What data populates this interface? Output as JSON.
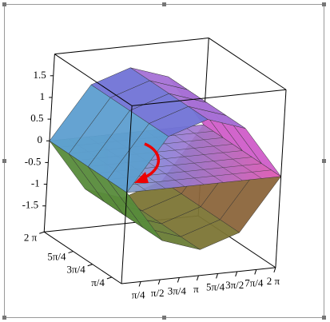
{
  "chart_data": {
    "type": "surface3d",
    "x": [
      0,
      1.5708,
      3.1416,
      4.7124,
      6.2832
    ],
    "y": [
      0,
      1.5708,
      3.1416,
      4.7124,
      6.2832
    ],
    "xlim": [
      0,
      6.2832
    ],
    "ylim": [
      0,
      6.2832
    ],
    "zlim": [
      -2.1,
      2.0
    ],
    "xticks": [
      {
        "value": 0.7854,
        "label": "π/4"
      },
      {
        "value": 1.5708,
        "label": "π/2"
      },
      {
        "value": 2.3562,
        "label": "3π/4"
      },
      {
        "value": 3.1416,
        "label": "π"
      },
      {
        "value": 3.927,
        "label": "5π/4"
      },
      {
        "value": 4.7124,
        "label": "3π/2"
      },
      {
        "value": 5.4978,
        "label": "7π/4"
      },
      {
        "value": 6.2832,
        "label": "2 π"
      }
    ],
    "yticks": [
      {
        "value": 0.7854,
        "label": "π/4"
      },
      {
        "value": 2.3562,
        "label": "3π/4"
      },
      {
        "value": 3.927,
        "label": "5π/4"
      },
      {
        "value": 6.2832,
        "label": "2 π"
      }
    ],
    "zticks": [
      1.5,
      1,
      0.5,
      0,
      -0.5,
      -1,
      -1.5
    ],
    "surfaces": [
      {
        "z": [
          [
            0,
            -1.2,
            -1.5,
            -1.2,
            0
          ],
          [
            0,
            -1.2,
            -1.5,
            -1.2,
            0
          ],
          [
            0,
            -1.2,
            -1.5,
            -1.2,
            0
          ],
          [
            0,
            -1.2,
            -1.5,
            -1.2,
            0
          ],
          [
            0,
            -1.2,
            -1.5,
            -1.2,
            0
          ]
        ]
      },
      {
        "z": [
          [
            0,
            1.2,
            1.5,
            1.2,
            0
          ],
          [
            0,
            1.2,
            1.5,
            1.2,
            0
          ],
          [
            0,
            1.2,
            1.5,
            1.2,
            0
          ],
          [
            0,
            1.2,
            1.5,
            1.2,
            0
          ],
          [
            0,
            1.2,
            1.5,
            1.2,
            0
          ]
        ]
      }
    ],
    "plane": {
      "x": [
        0,
        6.2832
      ],
      "y": [
        0,
        6.2832
      ],
      "z": [
        [
          0,
          0
        ],
        [
          0,
          0
        ]
      ]
    }
  }
}
